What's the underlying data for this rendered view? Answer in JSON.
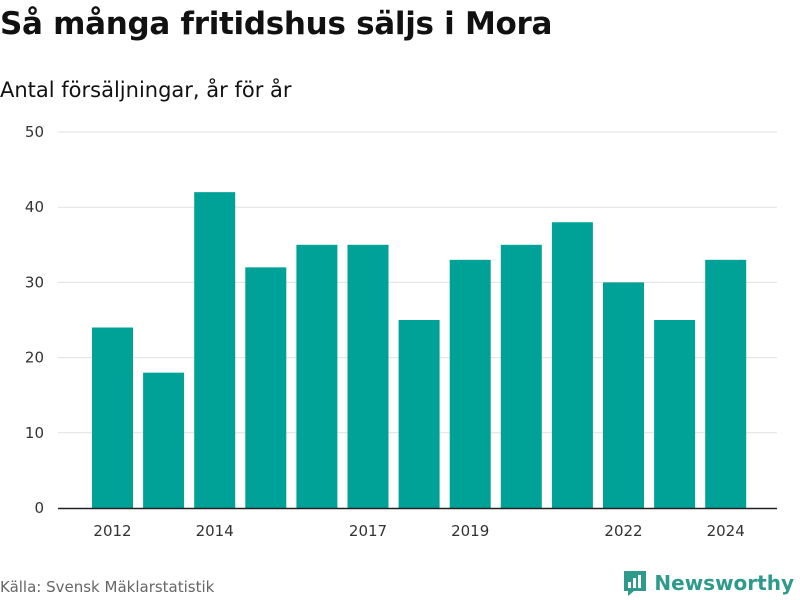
{
  "colors": {
    "bar": "#00a298",
    "grid": "#e0e0e0",
    "axis": "#222222",
    "brand": "#2e9a8c"
  },
  "chart_data": {
    "type": "bar",
    "title": "Så många fritidshus säljs i Mora",
    "subtitle": "Antal försäljningar, år för år",
    "categories": [
      2012,
      2013,
      2014,
      2015,
      2016,
      2017,
      2018,
      2019,
      2020,
      2021,
      2022,
      2023,
      2024
    ],
    "values": [
      24,
      18,
      42,
      32,
      35,
      35,
      25,
      33,
      35,
      38,
      30,
      25,
      33
    ],
    "x_tick_labels": [
      "2012",
      "2014",
      "2017",
      "2019",
      "2022",
      "2024"
    ],
    "y_ticks": [
      0,
      10,
      20,
      30,
      40,
      50
    ],
    "ylim": [
      0,
      50
    ],
    "grid": true
  },
  "footer": {
    "source": "Källa: Svensk Mäklarstatistik",
    "brand": "Newsworthy",
    "brand_icon": "newsworthy-logo-icon"
  }
}
